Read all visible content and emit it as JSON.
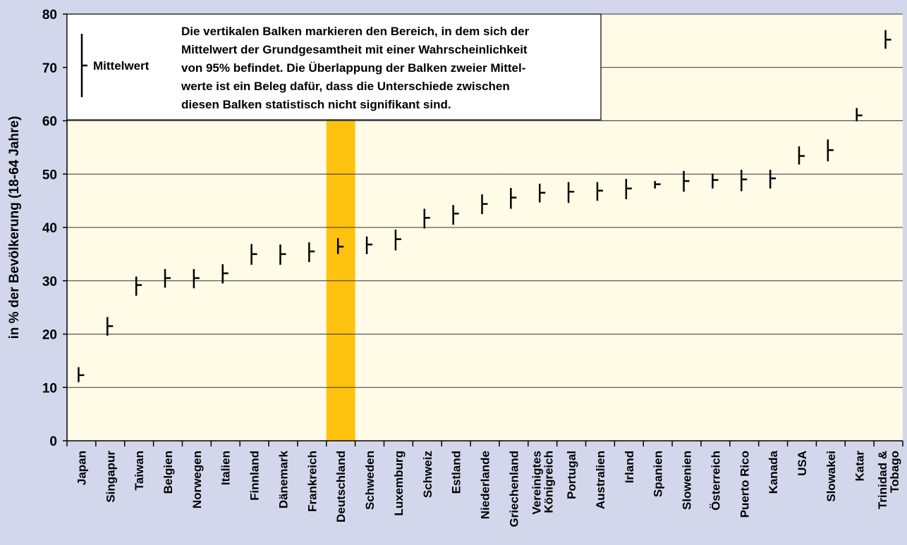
{
  "chart_data": {
    "type": "errorbar",
    "y_label": "in % der Bevölkerung (18-64 Jahre)",
    "legend_label": "Mittelwert",
    "note": [
      "Die vertikalen Balken markieren den Bereich, in dem sich der",
      "Mittelwert der Grundgesamtheit mit einer Wahrscheinlichkeit",
      "von 95% befindet. Die Überlappung der Balken zweier Mittel-",
      "werte ist ein Beleg dafür, dass die Unterschiede zwischen",
      "diesen Balken statistisch nicht signifikant sind."
    ],
    "categories": [
      "Japan",
      "Singapur",
      "Taiwan",
      "Belgien",
      "Norwegen",
      "Italien",
      "Finnland",
      "Dänemark",
      "Frankreich",
      "Deutschland",
      "Schweden",
      "Luxemburg",
      "Schweiz",
      "Estland",
      "Niederlande",
      "Griechenland",
      "Vereinigtes\nKönigreich",
      "Portugal",
      "Australien",
      "Irland",
      "Spanien",
      "Slowenien",
      "Österreich",
      "Puerto Rico",
      "Kanada",
      "USA",
      "Slowakei",
      "Katar",
      "Trinidad &\nTobago"
    ],
    "values": [
      12.3,
      21.5,
      29.2,
      30.5,
      30.5,
      31.4,
      35,
      35,
      35.5,
      36.4,
      36.8,
      37.8,
      41.8,
      42.6,
      44.4,
      45.6,
      46.5,
      46.7,
      46.9,
      47.3,
      48.1,
      48.7,
      48.9,
      49,
      49.2,
      53.4,
      54.5,
      61,
      75.2
    ],
    "low": [
      11,
      19.7,
      27.2,
      28.7,
      28.6,
      29.5,
      33,
      33,
      33.5,
      35,
      35,
      35.7,
      39.8,
      40.5,
      42.5,
      43.5,
      44.7,
      44.6,
      45,
      45.3,
      47.3,
      46.7,
      47.3,
      46.8,
      47.3,
      51.8,
      52.4,
      59.9,
      73.5
    ],
    "high": [
      13.8,
      23.2,
      30.8,
      32.2,
      32.2,
      33.1,
      36.9,
      36.8,
      37.2,
      38,
      38.3,
      39.6,
      43.5,
      44.2,
      46.2,
      47.4,
      48.2,
      48.5,
      48.5,
      49.1,
      48.7,
      50.6,
      50.1,
      50.8,
      50.8,
      55.2,
      56.5,
      62.4,
      77
    ],
    "color": "#000000",
    "highlight": "Deutschland",
    "highlight_color": "#ffc20e",
    "highlight_text_color": "#e8202a",
    "ylim": [
      0,
      80
    ],
    "yticks": [
      0,
      10,
      20,
      30,
      40,
      50,
      60,
      70,
      80
    ],
    "grid": true
  }
}
